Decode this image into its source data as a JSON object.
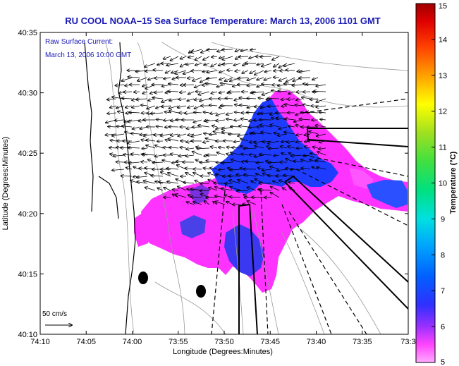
{
  "title": "RU COOL   NOAA–15  Sea Surface Temperature:  March 13, 2006 1101 GMT",
  "inset": {
    "line1": "Raw Surface Current:",
    "line2": "March 13, 2006 10:00 GMT"
  },
  "scale_label": "50 cm/s",
  "axes": {
    "x_label": "Longitude (Degrees:Minutes)",
    "y_label": "Latitude (Degrees:Minutes)",
    "x_ticks": [
      "74:10",
      "74:05",
      "74:00",
      "73:55",
      "73:50",
      "73:45",
      "73:40",
      "73:35",
      "73:3"
    ],
    "y_ticks": [
      "40:35",
      "40:30",
      "40:25",
      "40:20",
      "40:15",
      "40:10"
    ]
  },
  "colorbar": {
    "label": "Temperature (°C)",
    "ticks": [
      "15",
      "14",
      "13",
      "12",
      "11",
      "10",
      "9",
      "8",
      "7",
      "6",
      "5"
    ],
    "min": 5,
    "max": 15
  },
  "colors": {
    "title": "#1a1ab4",
    "sst_warm": "#ff33ff",
    "sst_cool": "#1e3cff",
    "coast": "#000000",
    "bathymetry": "#9a9a9a"
  }
}
